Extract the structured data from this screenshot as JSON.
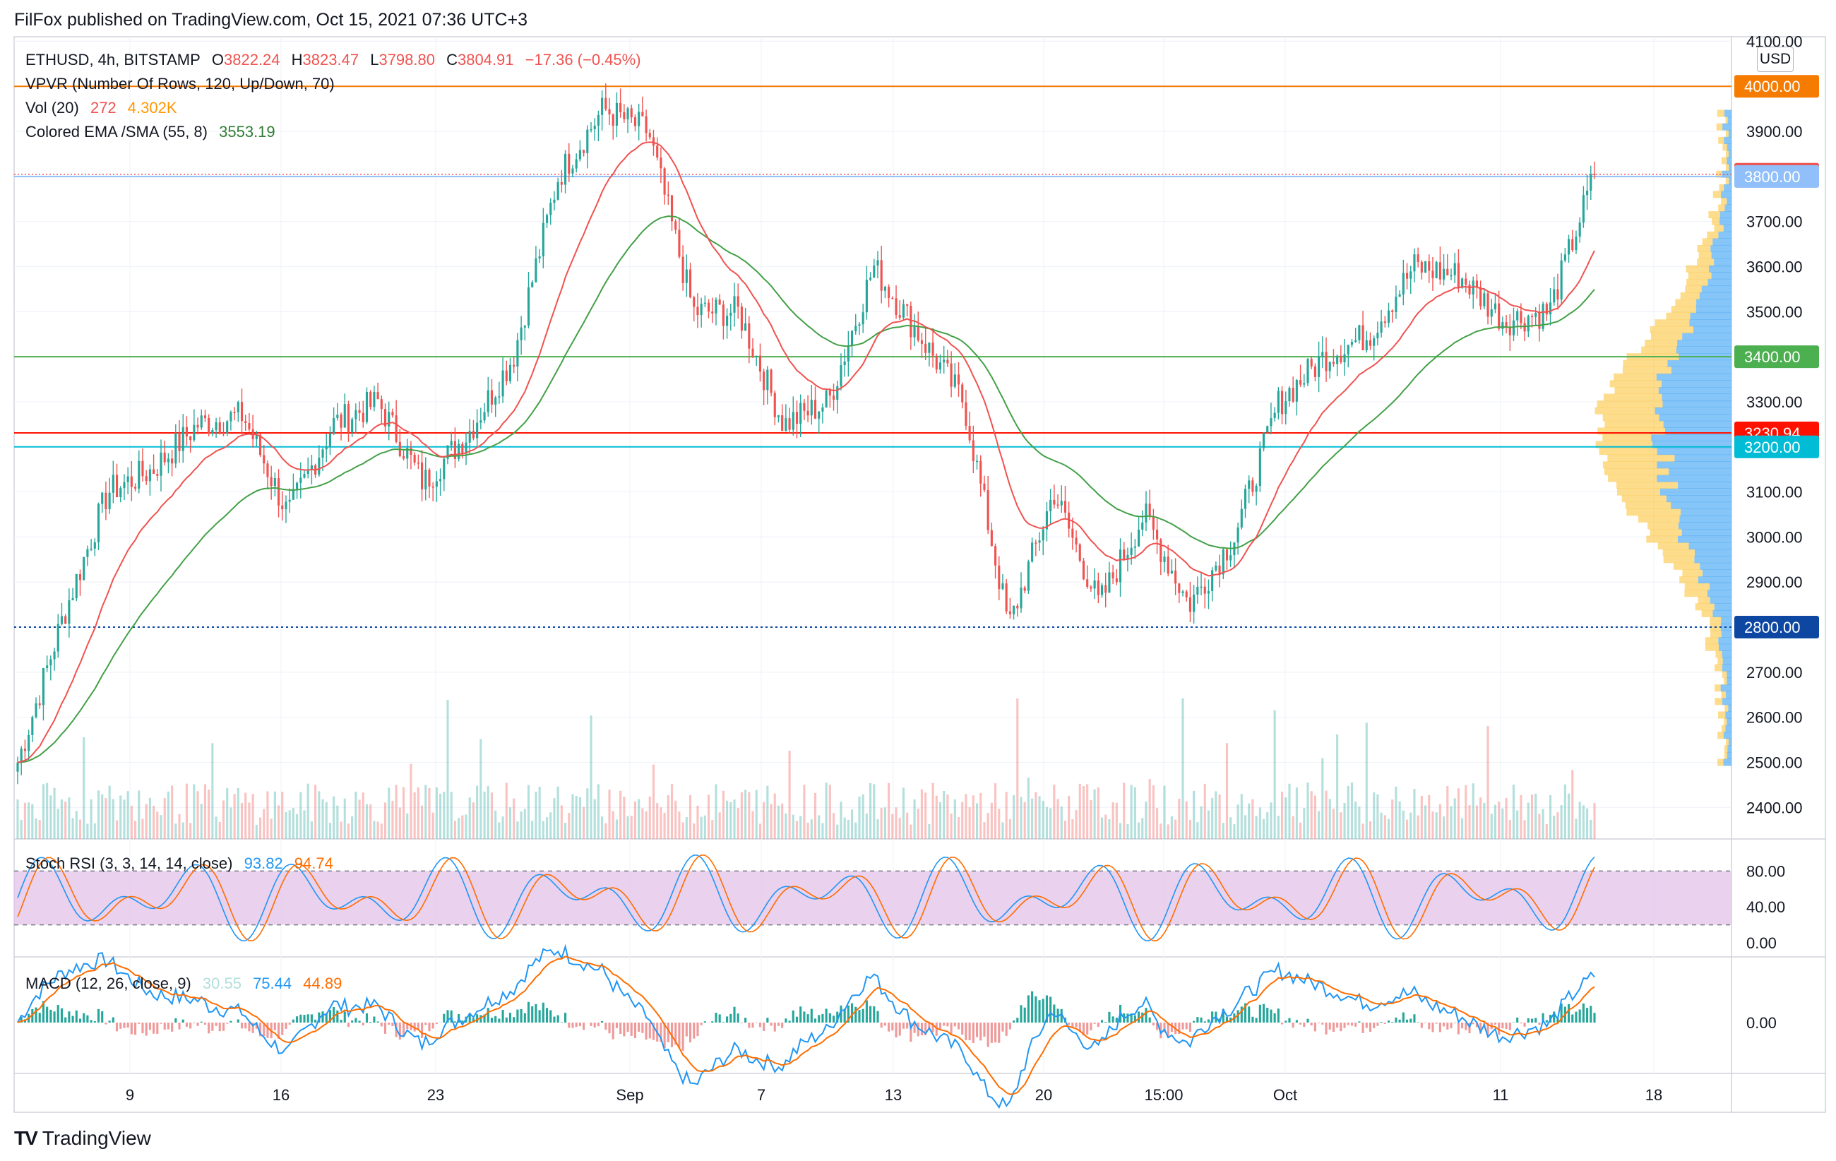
{
  "header": {
    "published": "FilFox published on TradingView.com, Oct 15, 2021 07:36 UTC+3"
  },
  "legend": {
    "symbol": "ETHUSD, 4h, BITSTAMP",
    "o_label": "O",
    "o": "3822.24",
    "h_label": "H",
    "h": "3823.47",
    "l_label": "L",
    "l": "3798.80",
    "c_label": "C",
    "c": "3804.91",
    "change": "−17.36 (−0.45%)",
    "vpvr": "VPVR (Number Of Rows, 120, Up/Down, 70)",
    "vol_label": "Vol (20)",
    "vol_val": "272",
    "vol_ma": "4.302K",
    "ema_label": "Colored EMA /SMA (55, 8)",
    "ema_val": "3553.19"
  },
  "stoch": {
    "label": "Stoch RSI (3, 3, 14, 14, close)",
    "k": "93.82",
    "d": "94.74"
  },
  "macd": {
    "label": "MACD (12, 26, close, 9)",
    "hist": "30.55",
    "macd": "75.44",
    "signal": "44.89"
  },
  "axis": {
    "currency": "USD",
    "price_ticks": [
      "4100.00",
      "3900.00",
      "3700.00",
      "3600.00",
      "3500.00",
      "3300.00",
      "3100.00",
      "3000.00",
      "2900.00",
      "2700.00",
      "2600.00",
      "2500.00",
      "2400.00"
    ],
    "price_tags": [
      {
        "text": "4000.00",
        "value": 4000,
        "color": "#f57c00"
      },
      {
        "text": "3804.91",
        "value": 3804.91,
        "color": "#ef5350"
      },
      {
        "text": "3800.00",
        "value": 3800,
        "color": "#90bff9"
      },
      {
        "text": "3400.00",
        "value": 3400,
        "color": "#4caf50"
      },
      {
        "text": "3230.94",
        "value": 3230.94,
        "color": "#ff1100"
      },
      {
        "text": "3200.00",
        "value": 3200,
        "color": "#00bcd4"
      },
      {
        "text": "2800.00",
        "value": 2800,
        "color": "#0d47a1"
      }
    ],
    "stoch_ticks": [
      "80.00",
      "40.00",
      "0.00"
    ],
    "macd_ticks": [
      "0.00"
    ],
    "time_labels": [
      "9",
      "16",
      "23",
      "Sep",
      "7",
      "13",
      "20",
      "15:00",
      "Oct",
      "11",
      "18"
    ]
  },
  "brand": {
    "name": "TradingView",
    "logo": "TV"
  },
  "colors": {
    "up": "#26a69a",
    "down": "#ef5350",
    "ema": "#43a047",
    "sma": "#ef5350",
    "rsi_fill": "#e1bee7"
  },
  "chart_data": {
    "type": "candlestick",
    "symbol": "ETHUSD",
    "interval": "4h",
    "exchange": "BITSTAMP",
    "ylim": [
      2330,
      4110
    ],
    "horizontal_levels": [
      4000,
      3800,
      3400,
      3230.94,
      3200,
      2800
    ],
    "time_labels": [
      "9",
      "16",
      "23",
      "Sep",
      "7",
      "13",
      "20",
      "15:00",
      "Oct",
      "11",
      "18"
    ],
    "close_path": [
      {
        "t": "Aug 3",
        "v": 2500
      },
      {
        "t": "Aug 6",
        "v": 2820
      },
      {
        "t": "Aug 9",
        "v": 3100
      },
      {
        "t": "Aug 11",
        "v": 3150
      },
      {
        "t": "Aug 13",
        "v": 3250
      },
      {
        "t": "Aug 16",
        "v": 3270
      },
      {
        "t": "Aug 19",
        "v": 3050
      },
      {
        "t": "Aug 22",
        "v": 3250
      },
      {
        "t": "Aug 24",
        "v": 3300
      },
      {
        "t": "Aug 26",
        "v": 3120
      },
      {
        "t": "Aug 29",
        "v": 3230
      },
      {
        "t": "Aug 31",
        "v": 3400
      },
      {
        "t": "Sep 2",
        "v": 3800
      },
      {
        "t": "Sep 3",
        "v": 3950
      },
      {
        "t": "Sep 5",
        "v": 3900
      },
      {
        "t": "Sep 7",
        "v": 3500
      },
      {
        "t": "Sep 9",
        "v": 3500
      },
      {
        "t": "Sep 11",
        "v": 3250
      },
      {
        "t": "Sep 13",
        "v": 3300
      },
      {
        "t": "Sep 15",
        "v": 3600
      },
      {
        "t": "Sep 17",
        "v": 3450
      },
      {
        "t": "Sep 19",
        "v": 3300
      },
      {
        "t": "Sep 21",
        "v": 2800
      },
      {
        "t": "Sep 23",
        "v": 3100
      },
      {
        "t": "Sep 25",
        "v": 2850
      },
      {
        "t": "Sep 27",
        "v": 3050
      },
      {
        "t": "Sep 29",
        "v": 2850
      },
      {
        "t": "Sep 30",
        "v": 3000
      },
      {
        "t": "Oct 1",
        "v": 3300
      },
      {
        "t": "Oct 3",
        "v": 3400
      },
      {
        "t": "Oct 5",
        "v": 3450
      },
      {
        "t": "Oct 7",
        "v": 3600
      },
      {
        "t": "Oct 9",
        "v": 3580
      },
      {
        "t": "Oct 11",
        "v": 3480
      },
      {
        "t": "Oct 13",
        "v": 3500
      },
      {
        "t": "Oct 15",
        "v": 3804.91
      }
    ],
    "stoch_rsi": {
      "k": 93.82,
      "d": 94.74,
      "bands": [
        80,
        20
      ]
    },
    "macd": {
      "hist": 30.55,
      "macd": 75.44,
      "signal": 44.89
    }
  }
}
